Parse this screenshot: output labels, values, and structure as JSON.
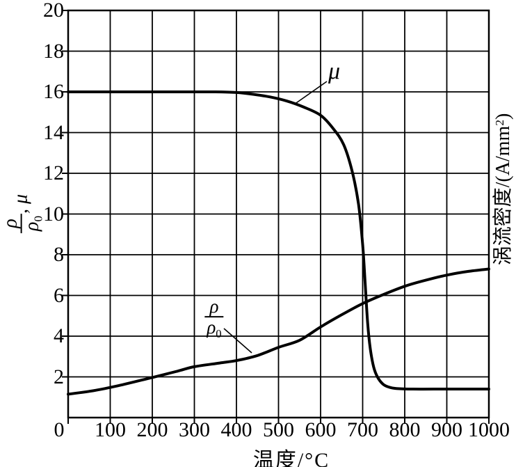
{
  "figure": {
    "background": "#ffffff",
    "line_color": "#000000",
    "grid_color": "#000000"
  },
  "chart_data": {
    "type": "line",
    "title": "",
    "xlabel": "温度/°C",
    "ylabel_left": "ρ/ρ₀, μ",
    "ylabel_right": "涡流密度/(A/mm²)",
    "xlim": [
      0,
      1000
    ],
    "ylim": [
      0,
      20
    ],
    "x_ticks": [
      0,
      100,
      200,
      300,
      400,
      500,
      600,
      700,
      800,
      900,
      1000
    ],
    "y_ticks": [
      2,
      4,
      6,
      8,
      10,
      12,
      14,
      16,
      18,
      20
    ],
    "grid": true,
    "legend_position": "none",
    "series": [
      {
        "name": "μ",
        "x": [
          0,
          100,
          200,
          300,
          350,
          400,
          440,
          480,
          520,
          560,
          600,
          630,
          655,
          675,
          690,
          700,
          706,
          712,
          718,
          726,
          735,
          748,
          762,
          780,
          820,
          900,
          1000
        ],
        "y": [
          16,
          16,
          16,
          16,
          16,
          15.97,
          15.88,
          15.75,
          15.55,
          15.25,
          14.85,
          14.2,
          13.4,
          12.1,
          10.5,
          8.5,
          6.6,
          4.6,
          3.4,
          2.5,
          2.0,
          1.65,
          1.5,
          1.43,
          1.4,
          1.4,
          1.4
        ]
      },
      {
        "name": "ρ/ρ₀",
        "x": [
          0,
          60,
          120,
          200,
          260,
          300,
          360,
          400,
          450,
          500,
          550,
          600,
          650,
          700,
          750,
          800,
          850,
          900,
          950,
          1000
        ],
        "y": [
          1.15,
          1.32,
          1.57,
          1.97,
          2.28,
          2.5,
          2.68,
          2.8,
          3.05,
          3.45,
          3.8,
          4.45,
          5.05,
          5.6,
          6.05,
          6.45,
          6.75,
          7.0,
          7.18,
          7.3
        ]
      }
    ],
    "annotations": [
      {
        "text": "μ",
        "points_to": "μ curve"
      },
      {
        "text": "ρ/ρ₀",
        "points_to": "ρ/ρ₀ curve"
      }
    ]
  },
  "labels": {
    "x_axis_title": "温度/°C",
    "mu": "μ",
    "rho": "ρ",
    "rho_sub": "0",
    "comma_mu": ", μ",
    "y_right_prefix": "涡流密度/(A/mm",
    "y_right_sup": "2",
    "y_right_suffix": ")"
  }
}
